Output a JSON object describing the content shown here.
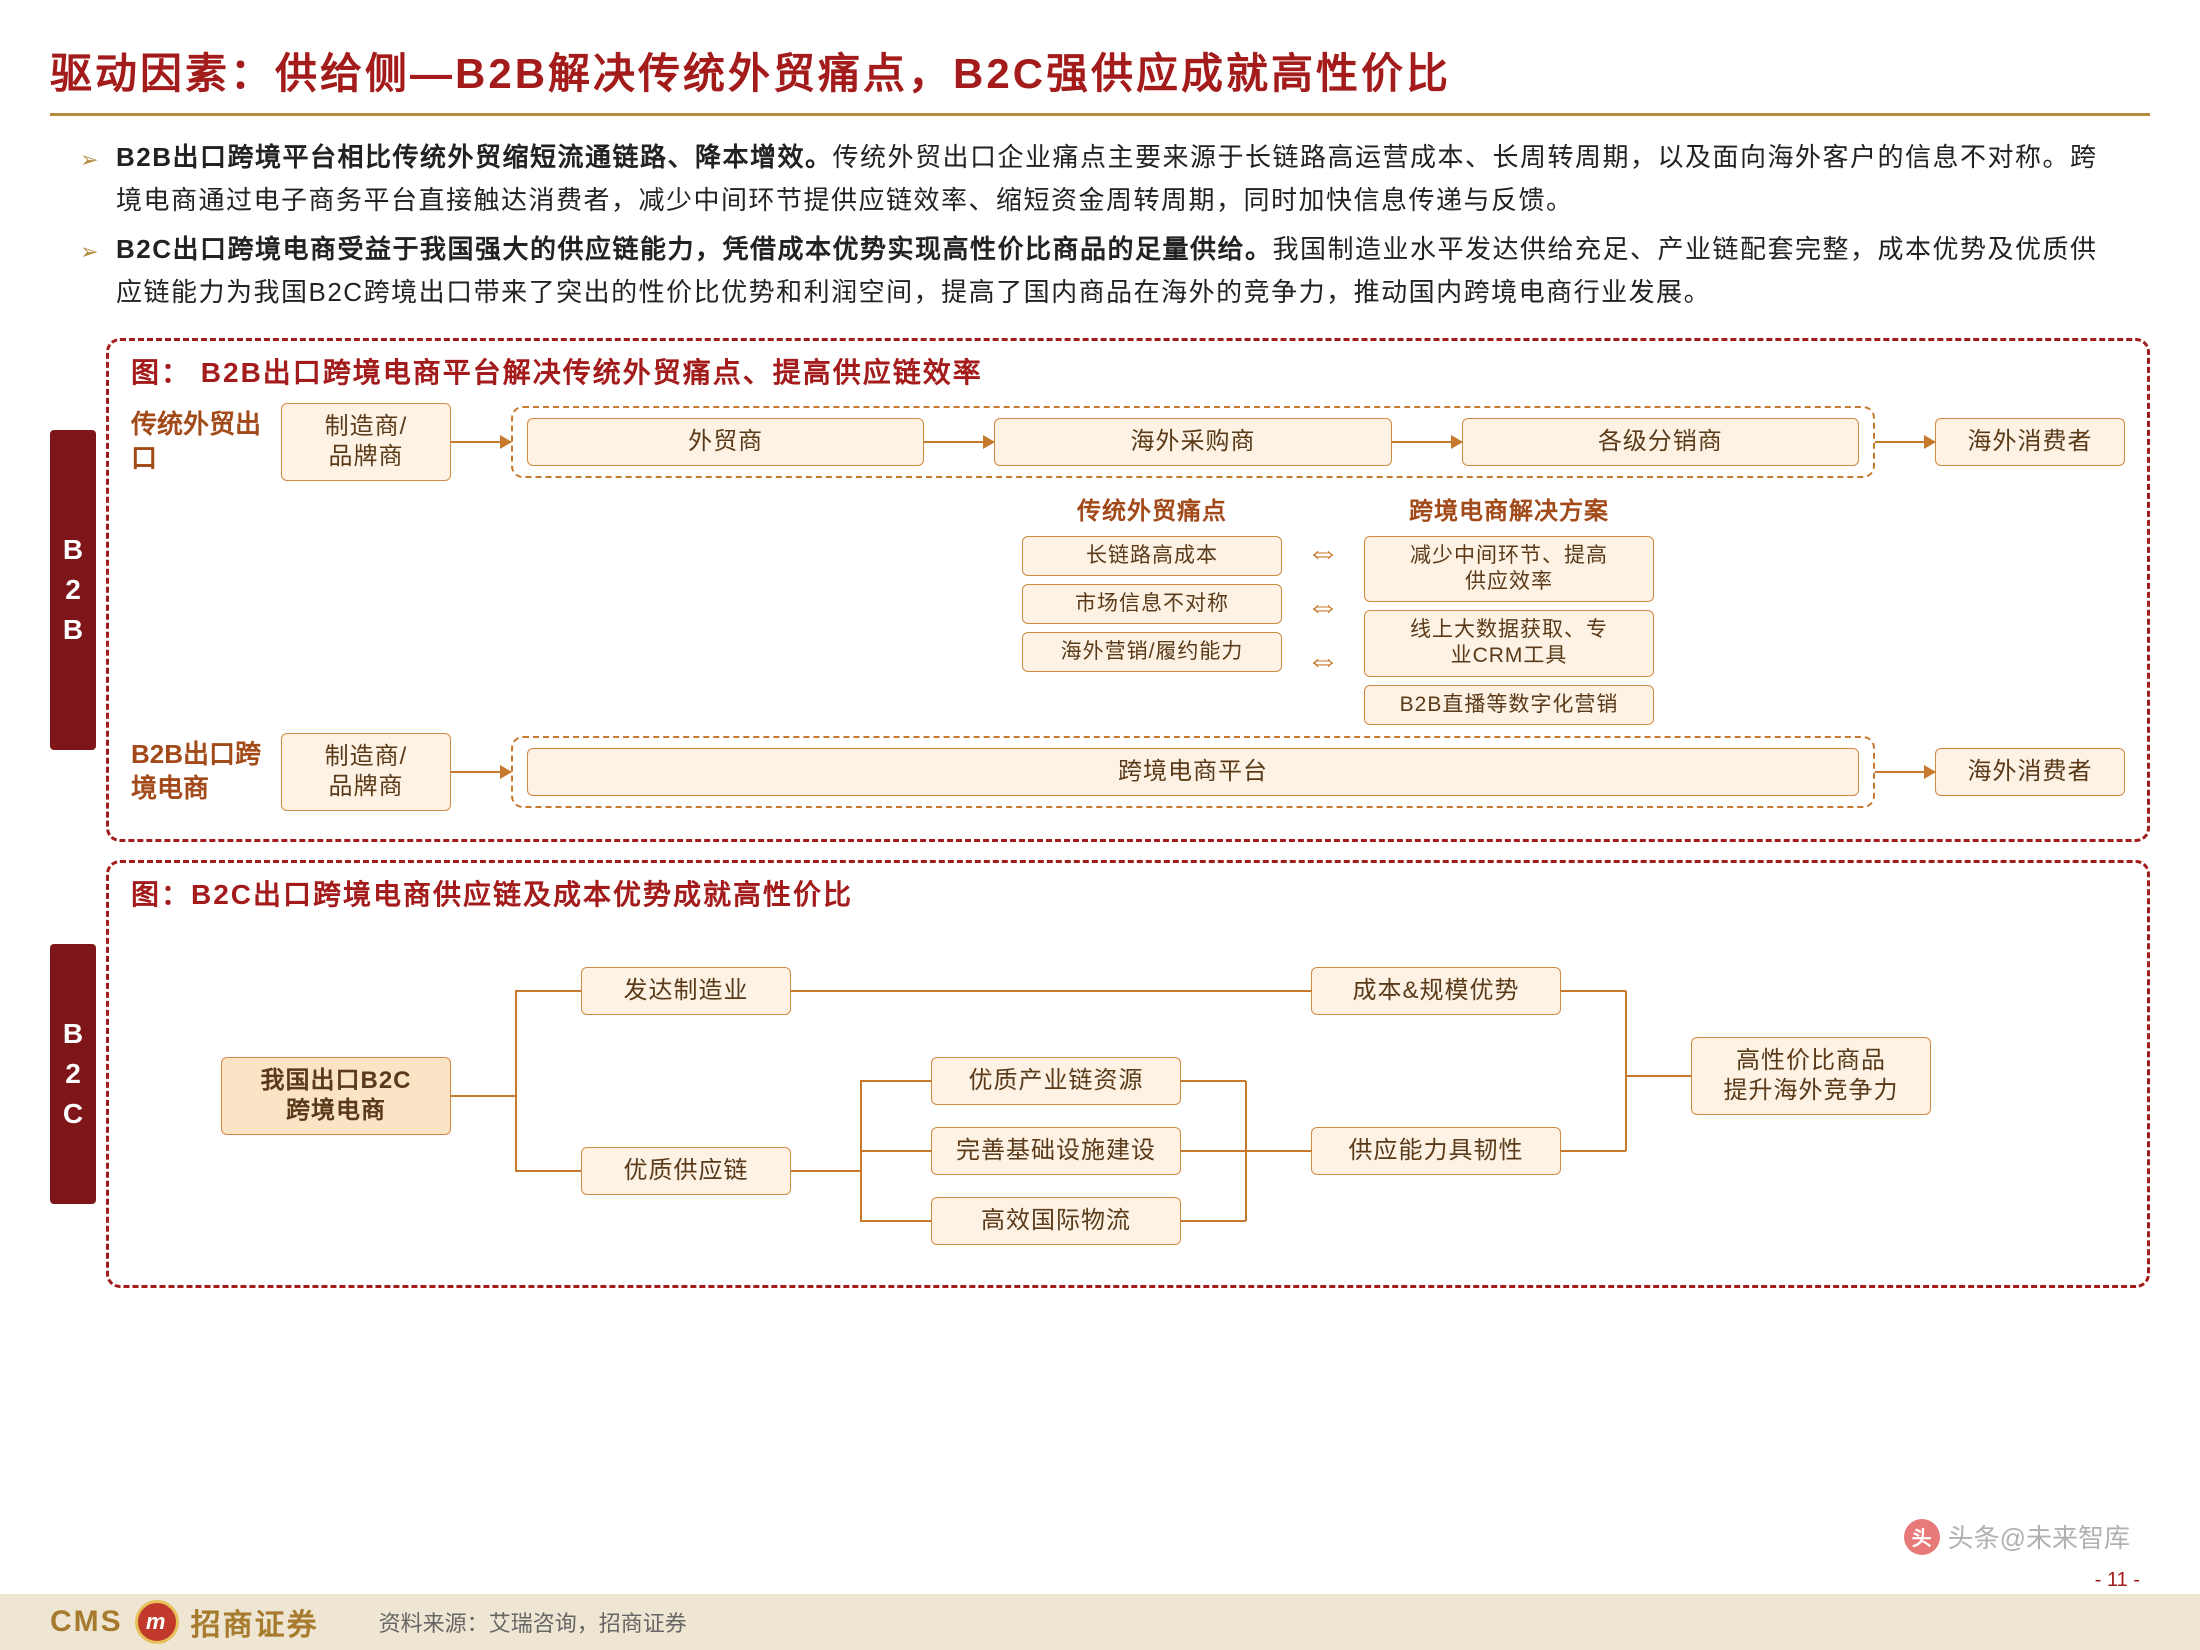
{
  "colors": {
    "title": "#a31b1b",
    "underline": "#b58a3f",
    "bullet_marker": "#b58a3f",
    "panel_border": "#a31b1b",
    "side_label_bg": "#7e1518",
    "row_label": "#a34a1a",
    "node_border": "#d28a40",
    "node_bg": "#fbe3c5",
    "node_bg_light": "#fdf2e4",
    "node_text": "#5a3a18",
    "arrow": "#c77a2e",
    "dashed_inner": "#c77a2e",
    "mid_title": "#a34a1a",
    "tree_line": "#c77a2e",
    "footer_bg": "#efe5d3",
    "logo_text": "#a77b2e",
    "logo_badge_bg": "#c1392b",
    "logo_badge_border": "#e6c15a",
    "page_num": "#a31b1b"
  },
  "title": "驱动因素：供给侧—B2B解决传统外贸痛点，B2C强供应成就高性价比",
  "bullets": [
    {
      "bold": "B2B出口跨境平台相比传统外贸缩短流通链路、降本增效。",
      "rest": "传统外贸出口企业痛点主要来源于长链路高运营成本、长周转周期，以及面向海外客户的信息不对称。跨境电商通过电子商务平台直接触达消费者，减少中间环节提供应链效率、缩短资金周转周期，同时加快信息传递与反馈。"
    },
    {
      "bold": "B2C出口跨境电商受益于我国强大的供应链能力，凭借成本优势实现高性价比商品的足量供给。",
      "rest": "我国制造业水平发达供给充足、产业链配套完整，成本优势及优质供应链能力为我国B2C跨境出口带来了突出的性价比优势和利润空间，提高了国内商品在海外的竞争力，推动国内跨境电商行业发展。"
    }
  ],
  "b2b": {
    "side": [
      "B",
      "2",
      "B"
    ],
    "panel_title": "图：  B2B出口跨境电商平台解决传统外贸痛点、提高供应链效率",
    "row1_label": "传统外贸出口",
    "row1_nodes": [
      "制造商/\n品牌商",
      "外贸商",
      "海外采购商",
      "各级分销商",
      "海外消费者"
    ],
    "mid_left_title": "传统外贸痛点",
    "mid_left": [
      "长链路高成本",
      "市场信息不对称",
      "海外营销/履约能力"
    ],
    "mid_right_title": "跨境电商解决方案",
    "mid_right": [
      "减少中间环节、提高\n供应效率",
      "线上大数据获取、专\n业CRM工具",
      "B2B直播等数字化营销"
    ],
    "row2_label": "B2B出口跨境电商",
    "row2_nodes": [
      "制造商/\n品牌商",
      "跨境电商平台",
      "海外消费者"
    ]
  },
  "b2c": {
    "side": [
      "B",
      "2",
      "C"
    ],
    "panel_title": "图：B2C出口跨境电商供应链及成本优势成就高性价比",
    "root": "我国出口B2C\n跨境电商",
    "l2": [
      "发达制造业",
      "优质供应链"
    ],
    "l3": [
      "优质产业链资源",
      "完善基础设施建设",
      "高效国际物流"
    ],
    "l4": [
      "成本&规模优势",
      "供应能力具韧性"
    ],
    "result": "高性价比商品\n提升海外竞争力"
  },
  "footer": {
    "cms": "CMS",
    "brand": "招商证券",
    "badge": "m",
    "source_label": "资料来源：",
    "source": "艾瑞咨询，招商证券",
    "page": "- 11 -",
    "watermark": "头条@未来智库"
  }
}
